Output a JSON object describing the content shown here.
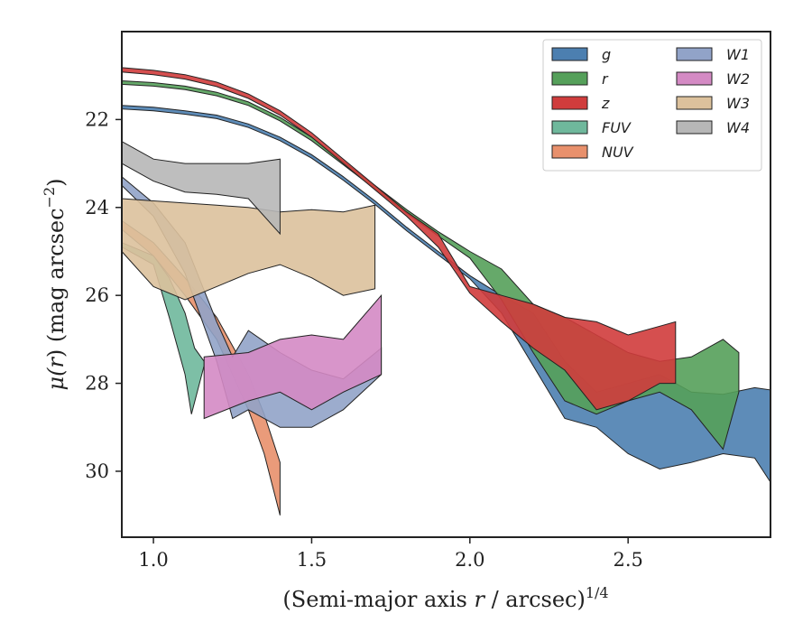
{
  "chart_data": {
    "type": "area",
    "title": "",
    "xlabel": "(Semi-major axis r / arcsec)",
    "xlabel_parts": {
      "prefix": "(Semi-major axis ",
      "var": "r",
      "suffix": " / arcsec)",
      "exponent": "1/4"
    },
    "ylabel": "μ(r) (mag arcsec⁻²)",
    "ylabel_parts": {
      "mu": "μ(",
      "var": "r",
      "mid": ") (mag arcsec",
      "exponent": "−2",
      "end": ")"
    },
    "xlim": [
      0.9,
      2.95
    ],
    "ylim": [
      31.5,
      20.0
    ],
    "y_inverted": true,
    "xticks": [
      1.0,
      1.5,
      2.0,
      2.5
    ],
    "xtick_labels": [
      "1.0",
      "1.5",
      "2.0",
      "2.5"
    ],
    "yticks": [
      22,
      24,
      26,
      28,
      30
    ],
    "ytick_labels": [
      "22",
      "24",
      "26",
      "28",
      "30"
    ],
    "grid": false,
    "legend_placement": "top-right",
    "legend_columns": 2,
    "series": [
      {
        "name": "g",
        "color": "#4c7fb0",
        "upper": [
          [
            0.9,
            21.68
          ],
          [
            1.0,
            21.72
          ],
          [
            1.1,
            21.8
          ],
          [
            1.2,
            21.9
          ],
          [
            1.3,
            22.1
          ],
          [
            1.4,
            22.4
          ],
          [
            1.5,
            22.8
          ],
          [
            1.6,
            23.3
          ],
          [
            1.7,
            23.85
          ],
          [
            1.8,
            24.45
          ],
          [
            1.9,
            25.0
          ],
          [
            2.0,
            25.55
          ],
          [
            2.1,
            26.0
          ],
          [
            2.2,
            26.4
          ],
          [
            2.3,
            27.5
          ],
          [
            2.4,
            28.2
          ],
          [
            2.5,
            28.0
          ],
          [
            2.6,
            27.8
          ],
          [
            2.7,
            28.2
          ],
          [
            2.8,
            28.25
          ],
          [
            2.9,
            28.1
          ],
          [
            2.95,
            28.15
          ]
        ],
        "lower": [
          [
            0.9,
            21.76
          ],
          [
            1.0,
            21.8
          ],
          [
            1.1,
            21.88
          ],
          [
            1.2,
            21.98
          ],
          [
            1.3,
            22.18
          ],
          [
            1.4,
            22.48
          ],
          [
            1.5,
            22.88
          ],
          [
            1.6,
            23.38
          ],
          [
            1.7,
            23.93
          ],
          [
            1.8,
            24.53
          ],
          [
            1.9,
            25.08
          ],
          [
            2.0,
            25.62
          ],
          [
            2.1,
            26.4
          ],
          [
            2.2,
            27.6
          ],
          [
            2.3,
            28.8
          ],
          [
            2.4,
            29.0
          ],
          [
            2.5,
            29.6
          ],
          [
            2.6,
            29.95
          ],
          [
            2.7,
            29.8
          ],
          [
            2.8,
            29.6
          ],
          [
            2.9,
            29.7
          ],
          [
            2.95,
            30.25
          ]
        ]
      },
      {
        "name": "r",
        "color": "#55a05a",
        "upper": [
          [
            0.9,
            21.12
          ],
          [
            1.0,
            21.16
          ],
          [
            1.1,
            21.24
          ],
          [
            1.2,
            21.38
          ],
          [
            1.3,
            21.6
          ],
          [
            1.4,
            21.95
          ],
          [
            1.5,
            22.4
          ],
          [
            1.6,
            22.95
          ],
          [
            1.7,
            23.5
          ],
          [
            1.8,
            24.05
          ],
          [
            1.9,
            24.55
          ],
          [
            2.0,
            25.0
          ],
          [
            2.1,
            25.4
          ],
          [
            2.2,
            26.2
          ],
          [
            2.3,
            26.5
          ],
          [
            2.4,
            26.9
          ],
          [
            2.5,
            27.3
          ],
          [
            2.6,
            27.5
          ],
          [
            2.7,
            27.4
          ],
          [
            2.8,
            27.0
          ],
          [
            2.85,
            27.3
          ]
        ],
        "lower": [
          [
            0.9,
            21.2
          ],
          [
            1.0,
            21.24
          ],
          [
            1.1,
            21.32
          ],
          [
            1.2,
            21.46
          ],
          [
            1.3,
            21.68
          ],
          [
            1.4,
            22.03
          ],
          [
            1.5,
            22.48
          ],
          [
            1.6,
            23.03
          ],
          [
            1.7,
            23.58
          ],
          [
            1.8,
            24.13
          ],
          [
            1.9,
            24.65
          ],
          [
            2.0,
            25.15
          ],
          [
            2.1,
            26.1
          ],
          [
            2.2,
            27.3
          ],
          [
            2.3,
            28.4
          ],
          [
            2.4,
            28.7
          ],
          [
            2.5,
            28.4
          ],
          [
            2.6,
            28.2
          ],
          [
            2.7,
            28.6
          ],
          [
            2.8,
            29.5
          ],
          [
            2.85,
            28.2
          ]
        ]
      },
      {
        "name": "z",
        "color": "#d03c3c",
        "upper": [
          [
            0.9,
            20.82
          ],
          [
            1.0,
            20.88
          ],
          [
            1.1,
            20.98
          ],
          [
            1.2,
            21.15
          ],
          [
            1.3,
            21.42
          ],
          [
            1.4,
            21.8
          ],
          [
            1.5,
            22.3
          ],
          [
            1.6,
            22.9
          ],
          [
            1.7,
            23.5
          ],
          [
            1.8,
            24.1
          ],
          [
            1.9,
            24.6
          ],
          [
            2.0,
            25.8
          ],
          [
            2.1,
            26.0
          ],
          [
            2.2,
            26.2
          ],
          [
            2.3,
            26.5
          ],
          [
            2.4,
            26.6
          ],
          [
            2.5,
            26.9
          ],
          [
            2.6,
            26.7
          ],
          [
            2.65,
            26.6
          ]
        ],
        "lower": [
          [
            0.9,
            20.92
          ],
          [
            1.0,
            20.98
          ],
          [
            1.1,
            21.08
          ],
          [
            1.2,
            21.25
          ],
          [
            1.3,
            21.52
          ],
          [
            1.4,
            21.9
          ],
          [
            1.5,
            22.4
          ],
          [
            1.6,
            23.0
          ],
          [
            1.7,
            23.6
          ],
          [
            1.8,
            24.2
          ],
          [
            1.9,
            24.9
          ],
          [
            2.0,
            25.95
          ],
          [
            2.1,
            26.6
          ],
          [
            2.2,
            27.2
          ],
          [
            2.3,
            27.7
          ],
          [
            2.4,
            28.6
          ],
          [
            2.5,
            28.4
          ],
          [
            2.6,
            28.0
          ],
          [
            2.65,
            28.0
          ]
        ]
      },
      {
        "name": "FUV",
        "color": "#6fb89c",
        "upper": [
          [
            0.9,
            24.8
          ],
          [
            1.0,
            25.1
          ],
          [
            1.05,
            25.6
          ],
          [
            1.1,
            26.4
          ],
          [
            1.13,
            27.2
          ],
          [
            1.16,
            27.5
          ]
        ],
        "lower": [
          [
            0.9,
            24.9
          ],
          [
            1.0,
            25.3
          ],
          [
            1.05,
            26.5
          ],
          [
            1.1,
            27.8
          ],
          [
            1.12,
            28.7
          ],
          [
            1.16,
            27.6
          ]
        ]
      },
      {
        "name": "NUV",
        "color": "#e8906c",
        "upper": [
          [
            0.9,
            24.3
          ],
          [
            1.0,
            24.8
          ],
          [
            1.1,
            25.6
          ],
          [
            1.2,
            26.5
          ],
          [
            1.3,
            27.8
          ],
          [
            1.35,
            28.7
          ],
          [
            1.4,
            29.8
          ]
        ],
        "lower": [
          [
            0.9,
            24.5
          ],
          [
            1.0,
            25.1
          ],
          [
            1.1,
            26.0
          ],
          [
            1.2,
            27.0
          ],
          [
            1.3,
            28.6
          ],
          [
            1.35,
            29.6
          ],
          [
            1.4,
            31.0
          ]
        ]
      },
      {
        "name": "W1",
        "color": "#91a3c8",
        "upper": [
          [
            0.9,
            23.3
          ],
          [
            1.0,
            23.9
          ],
          [
            1.1,
            24.8
          ],
          [
            1.2,
            26.6
          ],
          [
            1.25,
            27.4
          ],
          [
            1.3,
            26.8
          ],
          [
            1.4,
            27.3
          ],
          [
            1.5,
            27.7
          ],
          [
            1.6,
            27.9
          ],
          [
            1.72,
            27.2
          ]
        ],
        "lower": [
          [
            0.9,
            23.5
          ],
          [
            1.0,
            24.2
          ],
          [
            1.1,
            25.5
          ],
          [
            1.2,
            27.5
          ],
          [
            1.25,
            28.8
          ],
          [
            1.3,
            28.6
          ],
          [
            1.4,
            29.0
          ],
          [
            1.5,
            29.0
          ],
          [
            1.6,
            28.6
          ],
          [
            1.72,
            27.8
          ]
        ]
      },
      {
        "name": "W2",
        "color": "#d48ac4",
        "upper": [
          [
            1.16,
            27.4
          ],
          [
            1.3,
            27.3
          ],
          [
            1.4,
            27.0
          ],
          [
            1.5,
            26.9
          ],
          [
            1.6,
            27.0
          ],
          [
            1.72,
            26.0
          ]
        ],
        "lower": [
          [
            1.16,
            28.8
          ],
          [
            1.3,
            28.4
          ],
          [
            1.4,
            28.2
          ],
          [
            1.5,
            28.6
          ],
          [
            1.6,
            28.2
          ],
          [
            1.72,
            27.8
          ]
        ]
      },
      {
        "name": "W3",
        "color": "#dcc19c",
        "upper": [
          [
            0.9,
            23.8
          ],
          [
            1.0,
            23.85
          ],
          [
            1.1,
            23.9
          ],
          [
            1.2,
            23.95
          ],
          [
            1.3,
            24.0
          ],
          [
            1.4,
            24.1
          ],
          [
            1.5,
            24.05
          ],
          [
            1.6,
            24.1
          ],
          [
            1.7,
            23.95
          ]
        ],
        "lower": [
          [
            0.9,
            25.0
          ],
          [
            1.0,
            25.8
          ],
          [
            1.1,
            26.1
          ],
          [
            1.2,
            25.8
          ],
          [
            1.3,
            25.5
          ],
          [
            1.4,
            25.3
          ],
          [
            1.5,
            25.6
          ],
          [
            1.6,
            26.0
          ],
          [
            1.7,
            25.85
          ]
        ]
      },
      {
        "name": "W4",
        "color": "#b7b7b7",
        "upper": [
          [
            0.9,
            22.5
          ],
          [
            1.0,
            22.9
          ],
          [
            1.1,
            23.0
          ],
          [
            1.2,
            23.0
          ],
          [
            1.3,
            23.0
          ],
          [
            1.4,
            22.9
          ]
        ],
        "lower": [
          [
            0.9,
            23.0
          ],
          [
            1.0,
            23.4
          ],
          [
            1.1,
            23.65
          ],
          [
            1.2,
            23.7
          ],
          [
            1.3,
            23.8
          ],
          [
            1.4,
            24.6
          ]
        ]
      }
    ]
  }
}
